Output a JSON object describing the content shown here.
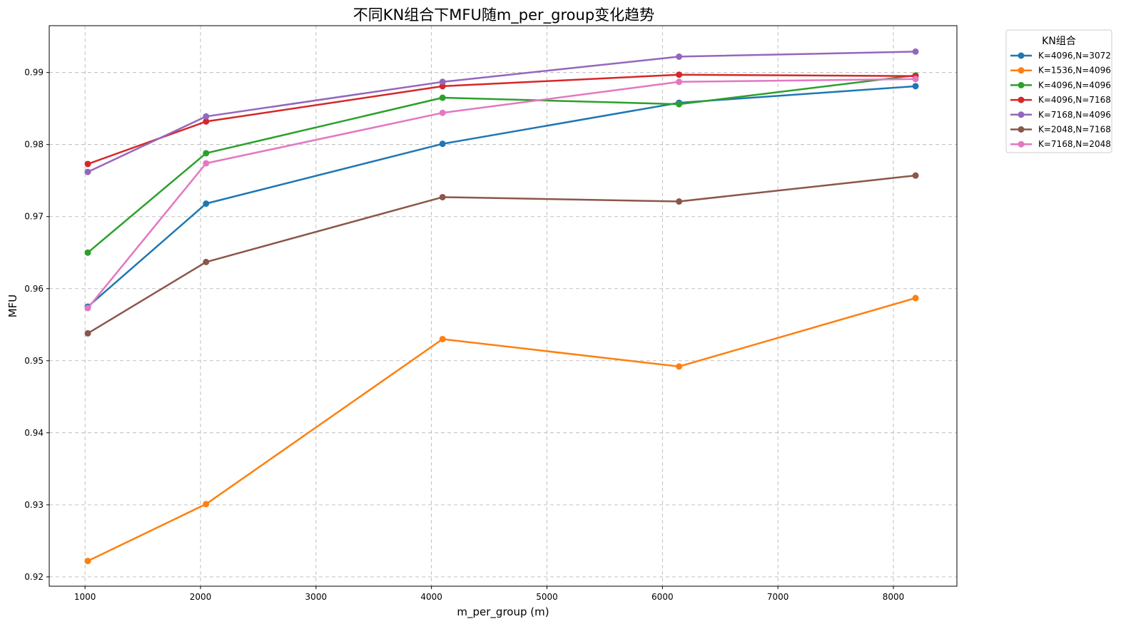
{
  "chart_data": {
    "type": "line",
    "title": "不同KN组合下MFU随m_per_group变化趋势",
    "xlabel": "m_per_group (m)",
    "ylabel": "MFU",
    "x": [
      1024,
      2048,
      4096,
      6144,
      8192
    ],
    "xticks": [
      1000,
      2000,
      3000,
      4000,
      5000,
      6000,
      7000,
      8000
    ],
    "yticks": [
      0.92,
      0.93,
      0.94,
      0.95,
      0.96,
      0.97,
      0.98,
      0.99
    ],
    "xlim": [
      690,
      8550
    ],
    "ylim": [
      0.9187,
      0.9965
    ],
    "grid": true,
    "legend": {
      "title": "KN组合",
      "placement": "outside-top-right"
    },
    "series": [
      {
        "name": "K=4096,N=3072",
        "color": "#1f77b4",
        "values": [
          0.9575,
          0.9718,
          0.9801,
          0.9858,
          0.9881
        ]
      },
      {
        "name": "K=1536,N=4096",
        "color": "#ff7f0e",
        "values": [
          0.9222,
          0.9301,
          0.953,
          0.9492,
          0.9587
        ]
      },
      {
        "name": "K=4096,N=4096",
        "color": "#2ca02c",
        "values": [
          0.965,
          0.9788,
          0.9865,
          0.9856,
          0.9896
        ]
      },
      {
        "name": "K=4096,N=7168",
        "color": "#d62728",
        "values": [
          0.9773,
          0.9832,
          0.9881,
          0.9897,
          0.9895
        ]
      },
      {
        "name": "K=7168,N=4096",
        "color": "#9467bd",
        "values": [
          0.9762,
          0.9839,
          0.9887,
          0.9922,
          0.9929
        ]
      },
      {
        "name": "K=2048,N=7168",
        "color": "#8c564b",
        "values": [
          0.9538,
          0.9637,
          0.9727,
          0.9721,
          0.9757
        ]
      },
      {
        "name": "K=7168,N=2048",
        "color": "#e377c2",
        "values": [
          0.9573,
          0.9774,
          0.9844,
          0.9887,
          0.9891
        ]
      }
    ]
  }
}
